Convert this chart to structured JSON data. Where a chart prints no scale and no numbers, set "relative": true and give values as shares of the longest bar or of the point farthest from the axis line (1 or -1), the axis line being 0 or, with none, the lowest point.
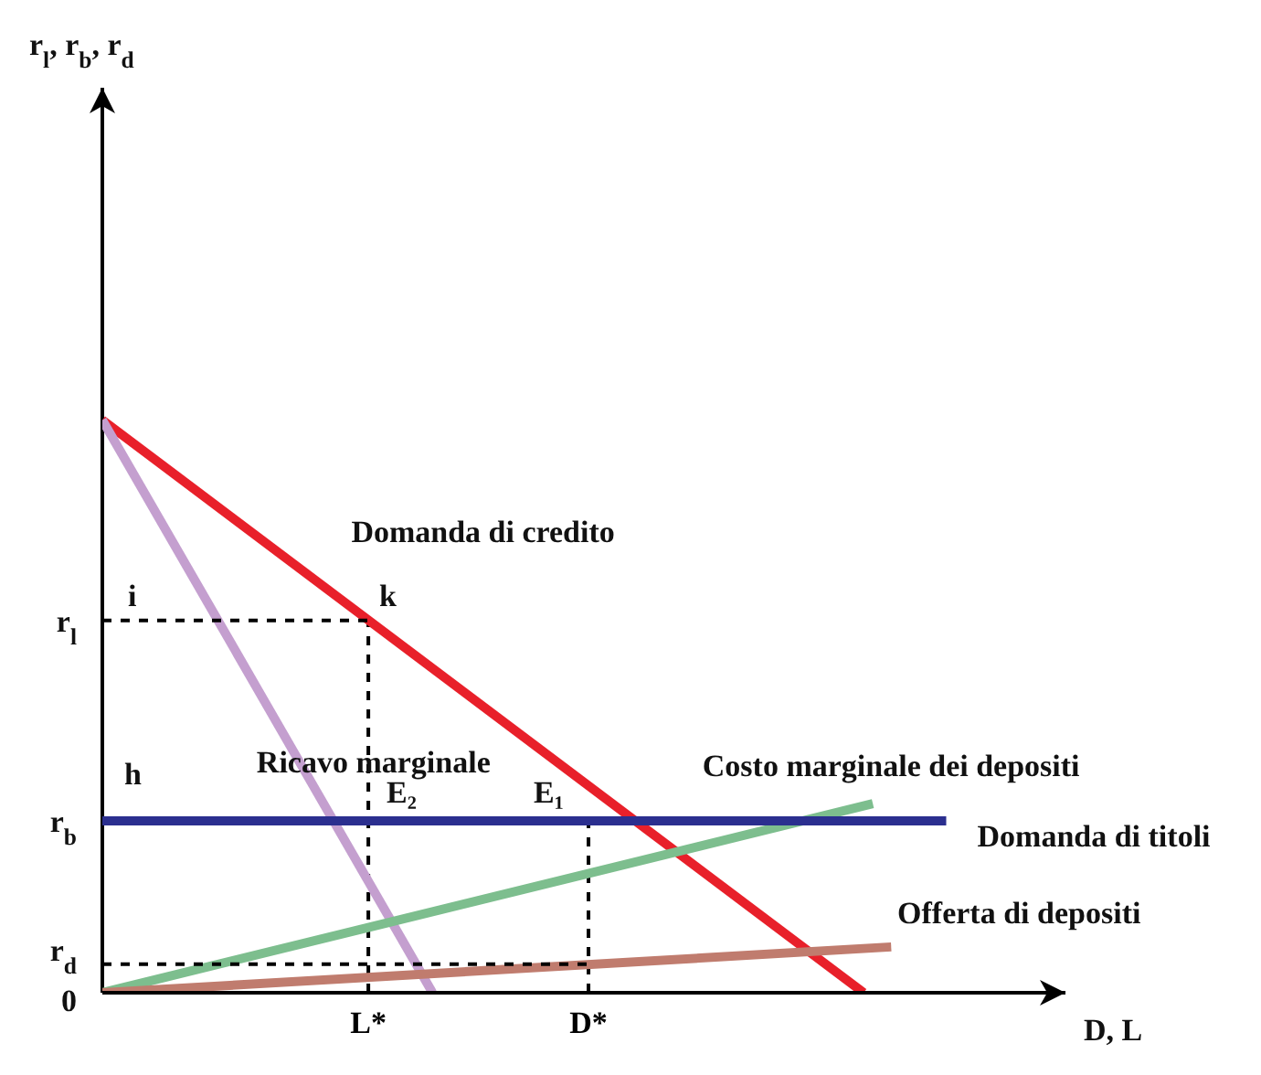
{
  "chart_data": {
    "type": "line",
    "relative": true,
    "xlabel": "D, L",
    "categories": [
      null,
      null,
      null,
      null,
      null,
      null,
      null,
      null,
      null,
      null,
      null,
      null,
      null,
      null,
      null,
      null,
      null,
      null,
      null,
      null,
      null,
      null,
      null,
      null,
      null,
      null,
      null,
      null,
      null,
      "L*",
      null,
      null,
      null,
      null,
      null,
      null,
      null,
      null,
      null,
      null,
      null,
      null,
      null,
      null,
      null,
      null,
      null,
      null,
      null,
      null,
      null,
      null,
      null,
      "D*",
      null,
      null,
      null,
      null,
      null,
      null,
      null,
      null,
      null,
      null,
      null,
      null,
      null,
      null,
      null,
      null,
      null,
      null,
      null,
      null,
      null,
      null,
      null,
      null,
      null,
      null,
      null,
      null,
      null,
      null,
      null,
      null,
      null,
      null,
      null,
      null,
      null,
      null,
      null
    ],
    "legend": false,
    "marker": "none",
    "line_style": "solid",
    "series": [
      {
        "name": "Domanda di credito",
        "color": "#e8202a",
        "values": [
          1,
          null,
          null,
          null,
          null,
          null,
          null,
          null,
          null,
          null,
          null,
          null,
          null,
          null,
          null,
          null,
          null,
          null,
          null,
          null,
          null,
          null,
          null,
          null,
          null,
          null,
          null,
          null,
          null,
          null,
          null,
          null,
          null,
          null,
          null,
          null,
          null,
          null,
          null,
          null,
          null,
          null,
          null,
          null,
          null,
          null,
          null,
          null,
          null,
          null,
          null,
          null,
          null,
          null,
          null,
          null,
          null,
          null,
          null,
          null,
          null,
          null,
          null,
          null,
          null,
          null,
          null,
          null,
          null,
          null,
          null,
          null,
          null,
          null,
          null,
          null,
          null,
          null,
          null,
          null,
          null,
          null,
          null,
          0,
          null,
          null,
          null,
          null,
          null,
          null,
          null,
          null,
          null
        ]
      },
      {
        "name": "Ricavo marginale",
        "color": "#c49fcf",
        "values": [
          1,
          null,
          null,
          null,
          null,
          null,
          null,
          null,
          null,
          null,
          null,
          null,
          null,
          null,
          null,
          null,
          null,
          null,
          null,
          null,
          null,
          null,
          null,
          null,
          null,
          null,
          null,
          null,
          null,
          null,
          null,
          null,
          null,
          null,
          null,
          null,
          0,
          null,
          null,
          null,
          null,
          null,
          null,
          null,
          null,
          null,
          null,
          null,
          null,
          null,
          null,
          null,
          null,
          null,
          null,
          null,
          null,
          null,
          null,
          null,
          null,
          null,
          null,
          null,
          null,
          null,
          null,
          null,
          null,
          null,
          null,
          null,
          null,
          null,
          null,
          null,
          null,
          null,
          null,
          null,
          null,
          null,
          null,
          null,
          null,
          null,
          null,
          null,
          null,
          null,
          null,
          null,
          null
        ]
      },
      {
        "name": "Costo marginale dei depositi",
        "color": "#7dbe8e",
        "values": [
          0,
          null,
          null,
          null,
          null,
          null,
          null,
          null,
          null,
          null,
          null,
          null,
          null,
          null,
          null,
          null,
          null,
          null,
          null,
          null,
          null,
          null,
          null,
          null,
          null,
          null,
          null,
          null,
          null,
          null,
          null,
          null,
          null,
          null,
          null,
          null,
          null,
          null,
          null,
          null,
          null,
          null,
          null,
          null,
          null,
          null,
          null,
          null,
          null,
          null,
          null,
          null,
          null,
          null,
          null,
          null,
          null,
          null,
          null,
          null,
          null,
          null,
          null,
          null,
          null,
          null,
          null,
          null,
          null,
          null,
          null,
          null,
          null,
          null,
          null,
          null,
          null,
          null,
          null,
          null,
          null,
          null,
          null,
          null,
          0.33,
          null,
          null,
          null,
          null,
          null,
          null,
          null,
          null
        ]
      },
      {
        "name": "Domanda di titoli",
        "color": "#2b2f8f",
        "values": [
          0.3,
          null,
          null,
          null,
          null,
          null,
          null,
          null,
          null,
          null,
          null,
          null,
          null,
          null,
          null,
          null,
          null,
          null,
          null,
          null,
          null,
          null,
          null,
          null,
          null,
          null,
          null,
          null,
          null,
          null,
          null,
          null,
          null,
          null,
          null,
          null,
          null,
          null,
          null,
          null,
          null,
          null,
          null,
          null,
          null,
          null,
          null,
          null,
          null,
          null,
          null,
          null,
          null,
          null,
          null,
          null,
          null,
          null,
          null,
          null,
          null,
          null,
          null,
          null,
          null,
          null,
          null,
          null,
          null,
          null,
          null,
          null,
          null,
          null,
          null,
          null,
          null,
          null,
          null,
          null,
          null,
          null,
          null,
          null,
          null,
          null,
          null,
          null,
          null,
          null,
          null,
          null,
          0.3
        ]
      },
      {
        "name": "Offerta di depositi",
        "color": "#c07c6e",
        "values": [
          0,
          null,
          null,
          null,
          null,
          null,
          null,
          null,
          null,
          null,
          null,
          null,
          null,
          null,
          null,
          null,
          null,
          null,
          null,
          null,
          null,
          null,
          null,
          null,
          null,
          null,
          null,
          null,
          null,
          null,
          null,
          null,
          null,
          null,
          null,
          null,
          null,
          null,
          null,
          null,
          null,
          null,
          null,
          null,
          null,
          null,
          null,
          null,
          null,
          null,
          null,
          null,
          null,
          null,
          null,
          null,
          null,
          null,
          null,
          null,
          null,
          null,
          null,
          null,
          null,
          null,
          null,
          null,
          null,
          null,
          null,
          null,
          null,
          null,
          null,
          null,
          null,
          null,
          null,
          null,
          null,
          null,
          null,
          null,
          null,
          null,
          0.08,
          null,
          null,
          null,
          null,
          null,
          null
        ]
      },
      {
        "color": "#000000",
        "line_style": "dashed",
        "values": [
          0.65,
          null,
          null,
          null,
          null,
          null,
          null,
          null,
          null,
          null,
          null,
          null,
          null,
          null,
          null,
          null,
          null,
          null,
          null,
          null,
          null,
          null,
          null,
          null,
          null,
          null,
          null,
          null,
          null,
          0.65,
          null,
          null,
          null,
          null,
          null,
          null,
          null,
          null,
          null,
          null,
          null,
          null,
          null,
          null,
          null,
          null,
          null,
          null,
          null,
          null,
          null,
          null,
          null,
          null,
          null,
          null,
          null,
          null,
          null,
          null,
          null,
          null,
          null,
          null,
          null,
          null,
          null,
          null,
          null,
          null,
          null,
          null,
          null,
          null,
          null,
          null,
          null,
          null,
          null,
          null,
          null,
          null,
          null,
          null,
          null,
          null,
          null,
          null,
          null,
          null,
          null,
          null,
          null
        ]
      },
      {
        "color": "#000000",
        "line_style": "dashed",
        "values": [
          0.05,
          null,
          null,
          null,
          null,
          null,
          null,
          null,
          null,
          null,
          null,
          null,
          null,
          null,
          null,
          null,
          null,
          null,
          null,
          null,
          null,
          null,
          null,
          null,
          null,
          null,
          null,
          null,
          null,
          null,
          null,
          null,
          null,
          null,
          null,
          null,
          null,
          null,
          null,
          null,
          null,
          null,
          null,
          null,
          null,
          null,
          null,
          null,
          null,
          null,
          null,
          null,
          null,
          0.05,
          null,
          null,
          null,
          null,
          null,
          null,
          null,
          null,
          null,
          null,
          null,
          null,
          null,
          null,
          null,
          null,
          null,
          null,
          null,
          null,
          null,
          null,
          null,
          null,
          null,
          null,
          null,
          null,
          null,
          null,
          null,
          null,
          null,
          null,
          null,
          null,
          null,
          null,
          null
        ]
      }
    ],
    "ref_lines": [
      {
        "axis": "x",
        "value": "L*",
        "color": "#000000",
        "line_style": "dashed"
      },
      {
        "axis": "x",
        "value": "D*",
        "color": "#000000",
        "line_style": "dashed"
      }
    ],
    "annotations": [
      {
        "text": "i",
        "y": 0.65
      },
      {
        "text": "k",
        "x": "L*",
        "y": 0.65
      },
      "h",
      {
        "text": "E₂",
        "x": "L*",
        "y": 0.3
      },
      {
        "text": "E₁",
        "x": "D*",
        "y": 0.3
      },
      "0",
      "r$_{l}$",
      "r$_{b}$",
      "r$_{d}$",
      "r$_{l}$, r$_{b}$, r$_{d}$"
    ]
  }
}
